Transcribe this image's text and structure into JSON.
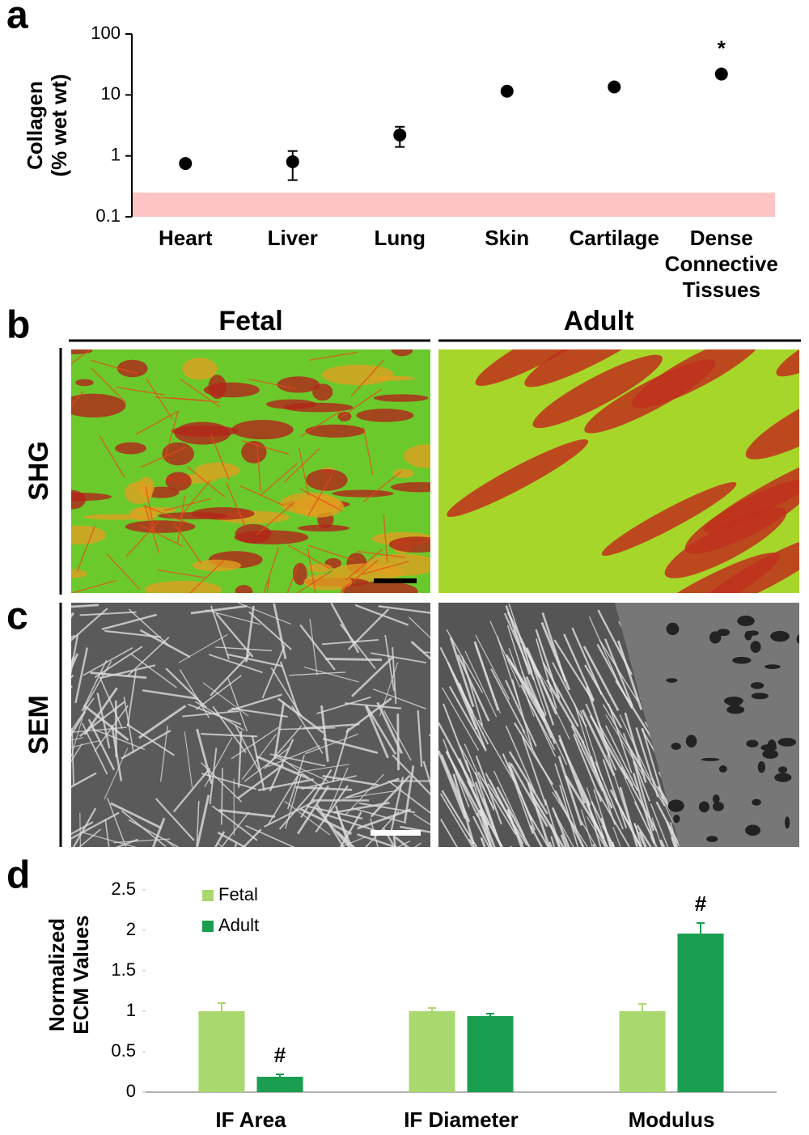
{
  "panels": {
    "a": "a",
    "b": "b",
    "c": "c",
    "d": "d"
  },
  "columns": [
    "Fetal",
    "Adult"
  ],
  "rows": [
    "SHG",
    "SEM"
  ],
  "chart_data": [
    {
      "type": "dot",
      "ylabel": [
        "Collagen",
        "(% wet wt)"
      ],
      "categories": [
        "Heart",
        "Liver",
        "Lung",
        "Skin",
        "Cartilage",
        "Dense Connective Tissues"
      ],
      "values": [
        0.75,
        0.8,
        2.2,
        11.5,
        13.5,
        22
      ],
      "errors": [
        0.05,
        0.4,
        0.8,
        1,
        1,
        1
      ],
      "color": "#000000",
      "log": true,
      "ylim": [
        0.1,
        100
      ],
      "yticks": [
        0.1,
        1,
        10,
        100
      ],
      "shaded_range": [
        0.1,
        0.25
      ],
      "shaded_color": "#ffc4c4",
      "annotations": [
        {
          "text": "*",
          "index": 5
        }
      ]
    },
    {
      "type": "bar",
      "ylabel": [
        "Normalized",
        "ECM Values"
      ],
      "categories": [
        "IF Area",
        "IF Diameter",
        "Modulus"
      ],
      "series": [
        {
          "name": "Fetal",
          "color": "#a9d86e",
          "values": [
            1,
            1,
            1
          ],
          "errors": [
            0.1,
            0.04,
            0.09
          ]
        },
        {
          "name": "Adult",
          "color": "#1a9e50",
          "values": [
            0.19,
            0.94,
            1.96
          ],
          "errors": [
            0.03,
            0.03,
            0.13
          ]
        }
      ],
      "ylim": [
        0,
        2.5
      ],
      "yticks": [
        0,
        0.5,
        1,
        1.5,
        2,
        2.5
      ],
      "legend": "upper-left",
      "annotations": [
        {
          "text": "#",
          "series": 1,
          "index": 0
        },
        {
          "text": "#",
          "series": 1,
          "index": 2
        }
      ]
    }
  ]
}
